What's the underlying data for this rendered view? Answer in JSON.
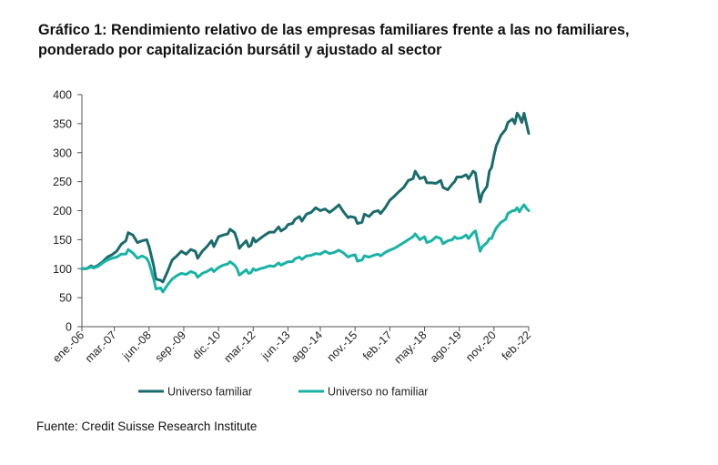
{
  "title_line1": "Gráfico 1: Rendimiento relativo de las empresas familiares frente a las no familiares,",
  "title_line2": "ponderado por capitalización bursátil y ajustado al sector",
  "source": "Fuente: Credit Suisse Research Institute",
  "colors": {
    "familiar": "#1a6b6b",
    "no_familiar": "#19b3a6",
    "axis": "#555555"
  },
  "chart_data": {
    "type": "line",
    "ylim": [
      0,
      400
    ],
    "yticks": [
      0,
      50,
      100,
      150,
      200,
      250,
      300,
      350,
      400
    ],
    "xlim": [
      0,
      193
    ],
    "xticks": [
      {
        "label": "ene.-06",
        "pos": 0
      },
      {
        "label": "mar.-07",
        "pos": 14
      },
      {
        "label": "jun.-08",
        "pos": 29
      },
      {
        "label": "sep.-09",
        "pos": 44
      },
      {
        "label": "dic.-10",
        "pos": 59
      },
      {
        "label": "mar.-12",
        "pos": 74
      },
      {
        "label": "jun.-13",
        "pos": 89
      },
      {
        "label": "ago.-14",
        "pos": 103
      },
      {
        "label": "nov.-15",
        "pos": 118
      },
      {
        "label": "feb.-17",
        "pos": 133
      },
      {
        "label": "may.-18",
        "pos": 148
      },
      {
        "label": "ago.-19",
        "pos": 163
      },
      {
        "label": "nov.-20",
        "pos": 178
      },
      {
        "label": "feb.-22",
        "pos": 193
      }
    ],
    "series": [
      {
        "name": "Universo familiar",
        "points": [
          [
            0,
            100
          ],
          [
            2,
            100
          ],
          [
            4,
            105
          ],
          [
            5,
            102
          ],
          [
            7,
            106
          ],
          [
            9,
            112
          ],
          [
            11,
            120
          ],
          [
            13,
            124
          ],
          [
            15,
            130
          ],
          [
            17,
            142
          ],
          [
            19,
            148
          ],
          [
            20,
            162
          ],
          [
            22,
            158
          ],
          [
            24,
            145
          ],
          [
            26,
            148
          ],
          [
            28,
            150
          ],
          [
            29,
            138
          ],
          [
            31,
            105
          ],
          [
            32,
            82
          ],
          [
            34,
            80
          ],
          [
            35,
            77
          ],
          [
            37,
            95
          ],
          [
            39,
            115
          ],
          [
            41,
            122
          ],
          [
            43,
            130
          ],
          [
            45,
            125
          ],
          [
            47,
            133
          ],
          [
            49,
            130
          ],
          [
            50,
            118
          ],
          [
            52,
            130
          ],
          [
            54,
            138
          ],
          [
            56,
            148
          ],
          [
            57,
            138
          ],
          [
            59,
            155
          ],
          [
            61,
            158
          ],
          [
            63,
            160
          ],
          [
            64,
            168
          ],
          [
            66,
            162
          ],
          [
            67,
            150
          ],
          [
            68,
            135
          ],
          [
            69,
            140
          ],
          [
            71,
            148
          ],
          [
            72,
            138
          ],
          [
            73,
            140
          ],
          [
            74,
            153
          ],
          [
            75,
            146
          ],
          [
            77,
            152
          ],
          [
            79,
            158
          ],
          [
            81,
            163
          ],
          [
            83,
            163
          ],
          [
            85,
            172
          ],
          [
            86,
            165
          ],
          [
            88,
            170
          ],
          [
            89,
            176
          ],
          [
            91,
            178
          ],
          [
            92,
            185
          ],
          [
            94,
            190
          ],
          [
            95,
            182
          ],
          [
            97,
            194
          ],
          [
            99,
            197
          ],
          [
            101,
            205
          ],
          [
            103,
            200
          ],
          [
            105,
            203
          ],
          [
            107,
            197
          ],
          [
            109,
            203
          ],
          [
            111,
            210
          ],
          [
            113,
            198
          ],
          [
            115,
            188
          ],
          [
            116,
            190
          ],
          [
            118,
            188
          ],
          [
            119,
            178
          ],
          [
            121,
            180
          ],
          [
            122,
            194
          ],
          [
            124,
            190
          ],
          [
            126,
            198
          ],
          [
            128,
            200
          ],
          [
            129,
            195
          ],
          [
            131,
            205
          ],
          [
            133,
            218
          ],
          [
            135,
            225
          ],
          [
            137,
            233
          ],
          [
            139,
            240
          ],
          [
            141,
            252
          ],
          [
            143,
            255
          ],
          [
            144,
            268
          ],
          [
            146,
            255
          ],
          [
            148,
            258
          ],
          [
            149,
            248
          ],
          [
            151,
            248
          ],
          [
            153,
            247
          ],
          [
            155,
            252
          ],
          [
            156,
            240
          ],
          [
            158,
            236
          ],
          [
            160,
            246
          ],
          [
            161,
            250
          ],
          [
            162,
            258
          ],
          [
            164,
            258
          ],
          [
            166,
            262
          ],
          [
            167,
            255
          ],
          [
            169,
            268
          ],
          [
            170,
            265
          ],
          [
            171,
            238
          ],
          [
            172,
            215
          ],
          [
            173,
            230
          ],
          [
            175,
            242
          ],
          [
            176,
            268
          ],
          [
            177,
            275
          ],
          [
            178,
            295
          ],
          [
            179,
            312
          ],
          [
            181,
            330
          ],
          [
            183,
            340
          ],
          [
            184,
            352
          ],
          [
            186,
            358
          ],
          [
            187,
            350
          ],
          [
            188,
            368
          ],
          [
            189,
            362
          ],
          [
            190,
            352
          ],
          [
            191,
            368
          ],
          [
            192,
            350
          ],
          [
            193,
            333
          ]
        ]
      },
      {
        "name": "Universo no familiar",
        "points": [
          [
            0,
            100
          ],
          [
            2,
            100
          ],
          [
            4,
            103
          ],
          [
            5,
            101
          ],
          [
            7,
            104
          ],
          [
            9,
            110
          ],
          [
            11,
            115
          ],
          [
            13,
            118
          ],
          [
            15,
            120
          ],
          [
            17,
            125
          ],
          [
            19,
            125
          ],
          [
            20,
            133
          ],
          [
            22,
            127
          ],
          [
            24,
            118
          ],
          [
            26,
            122
          ],
          [
            28,
            118
          ],
          [
            29,
            110
          ],
          [
            31,
            82
          ],
          [
            32,
            65
          ],
          [
            34,
            67
          ],
          [
            35,
            60
          ],
          [
            37,
            72
          ],
          [
            39,
            82
          ],
          [
            41,
            88
          ],
          [
            43,
            92
          ],
          [
            45,
            90
          ],
          [
            47,
            95
          ],
          [
            49,
            92
          ],
          [
            50,
            85
          ],
          [
            52,
            92
          ],
          [
            54,
            95
          ],
          [
            56,
            100
          ],
          [
            57,
            95
          ],
          [
            59,
            102
          ],
          [
            61,
            106
          ],
          [
            63,
            108
          ],
          [
            64,
            112
          ],
          [
            66,
            106
          ],
          [
            67,
            100
          ],
          [
            68,
            89
          ],
          [
            69,
            92
          ],
          [
            71,
            98
          ],
          [
            72,
            92
          ],
          [
            73,
            93
          ],
          [
            74,
            100
          ],
          [
            75,
            97
          ],
          [
            77,
            100
          ],
          [
            79,
            102
          ],
          [
            81,
            105
          ],
          [
            83,
            104
          ],
          [
            85,
            110
          ],
          [
            86,
            106
          ],
          [
            88,
            110
          ],
          [
            89,
            112
          ],
          [
            91,
            112
          ],
          [
            92,
            117
          ],
          [
            94,
            120
          ],
          [
            95,
            116
          ],
          [
            97,
            122
          ],
          [
            99,
            123
          ],
          [
            101,
            126
          ],
          [
            103,
            125
          ],
          [
            105,
            130
          ],
          [
            107,
            126
          ],
          [
            109,
            128
          ],
          [
            111,
            132
          ],
          [
            113,
            127
          ],
          [
            115,
            120
          ],
          [
            116,
            122
          ],
          [
            118,
            124
          ],
          [
            119,
            113
          ],
          [
            121,
            115
          ],
          [
            122,
            122
          ],
          [
            124,
            120
          ],
          [
            126,
            123
          ],
          [
            128,
            125
          ],
          [
            129,
            122
          ],
          [
            131,
            128
          ],
          [
            133,
            132
          ],
          [
            135,
            135
          ],
          [
            137,
            140
          ],
          [
            139,
            145
          ],
          [
            141,
            150
          ],
          [
            143,
            155
          ],
          [
            144,
            160
          ],
          [
            146,
            150
          ],
          [
            148,
            155
          ],
          [
            149,
            145
          ],
          [
            151,
            148
          ],
          [
            153,
            155
          ],
          [
            155,
            152
          ],
          [
            156,
            143
          ],
          [
            158,
            148
          ],
          [
            160,
            150
          ],
          [
            161,
            155
          ],
          [
            162,
            152
          ],
          [
            164,
            153
          ],
          [
            166,
            158
          ],
          [
            167,
            152
          ],
          [
            169,
            162
          ],
          [
            170,
            165
          ],
          [
            171,
            148
          ],
          [
            172,
            130
          ],
          [
            173,
            138
          ],
          [
            175,
            145
          ],
          [
            176,
            152
          ],
          [
            177,
            152
          ],
          [
            178,
            162
          ],
          [
            179,
            170
          ],
          [
            181,
            180
          ],
          [
            183,
            185
          ],
          [
            184,
            195
          ],
          [
            186,
            200
          ],
          [
            187,
            200
          ],
          [
            188,
            205
          ],
          [
            189,
            198
          ],
          [
            190,
            205
          ],
          [
            191,
            210
          ],
          [
            192,
            204
          ],
          [
            193,
            200
          ]
        ]
      }
    ],
    "legend_position": "bottom"
  }
}
